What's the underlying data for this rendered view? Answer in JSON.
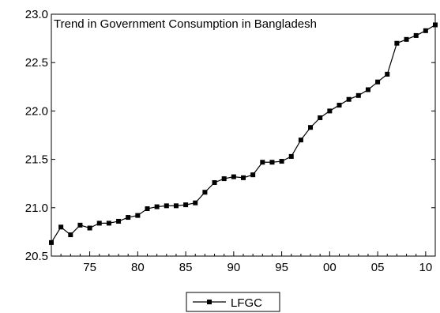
{
  "chart_data": {
    "type": "line",
    "title": "Trend in Government Consumption in Bangladesh",
    "xlabel": "",
    "ylabel": "",
    "x": [
      1971,
      1972,
      1973,
      1974,
      1975,
      1976,
      1977,
      1978,
      1979,
      1980,
      1981,
      1982,
      1983,
      1984,
      1985,
      1986,
      1987,
      1988,
      1989,
      1990,
      1991,
      1992,
      1993,
      1994,
      1995,
      1996,
      1997,
      1998,
      1999,
      2000,
      2001,
      2002,
      2003,
      2004,
      2005,
      2006,
      2007,
      2008,
      2009,
      2010,
      2011
    ],
    "xlim": [
      1971,
      2011
    ],
    "ylim": [
      20.5,
      23.0
    ],
    "x_ticks": [
      {
        "value": 1975,
        "label": "75"
      },
      {
        "value": 1980,
        "label": "80"
      },
      {
        "value": 1985,
        "label": "85"
      },
      {
        "value": 1990,
        "label": "90"
      },
      {
        "value": 1995,
        "label": "95"
      },
      {
        "value": 2000,
        "label": "00"
      },
      {
        "value": 2005,
        "label": "05"
      },
      {
        "value": 2010,
        "label": "10"
      }
    ],
    "y_ticks": [
      {
        "value": 20.5,
        "label": "20.5"
      },
      {
        "value": 21.0,
        "label": "21.0"
      },
      {
        "value": 21.5,
        "label": "21.5"
      },
      {
        "value": 22.0,
        "label": "22.0"
      },
      {
        "value": 22.5,
        "label": "22.5"
      },
      {
        "value": 23.0,
        "label": "23.0"
      }
    ],
    "grid": false,
    "legend_position": "bottom-center",
    "series": [
      {
        "name": "LFGC",
        "color": "#000000",
        "marker": "square",
        "values": [
          20.64,
          20.8,
          20.72,
          20.82,
          20.79,
          20.84,
          20.84,
          20.86,
          20.9,
          20.92,
          20.99,
          21.01,
          21.02,
          21.02,
          21.03,
          21.05,
          21.16,
          21.26,
          21.3,
          21.32,
          21.31,
          21.34,
          21.47,
          21.47,
          21.48,
          21.53,
          21.7,
          21.83,
          21.93,
          22.0,
          22.06,
          22.12,
          22.16,
          22.22,
          22.3,
          22.38,
          22.7,
          22.74,
          22.78,
          22.83,
          22.89
        ]
      }
    ]
  }
}
